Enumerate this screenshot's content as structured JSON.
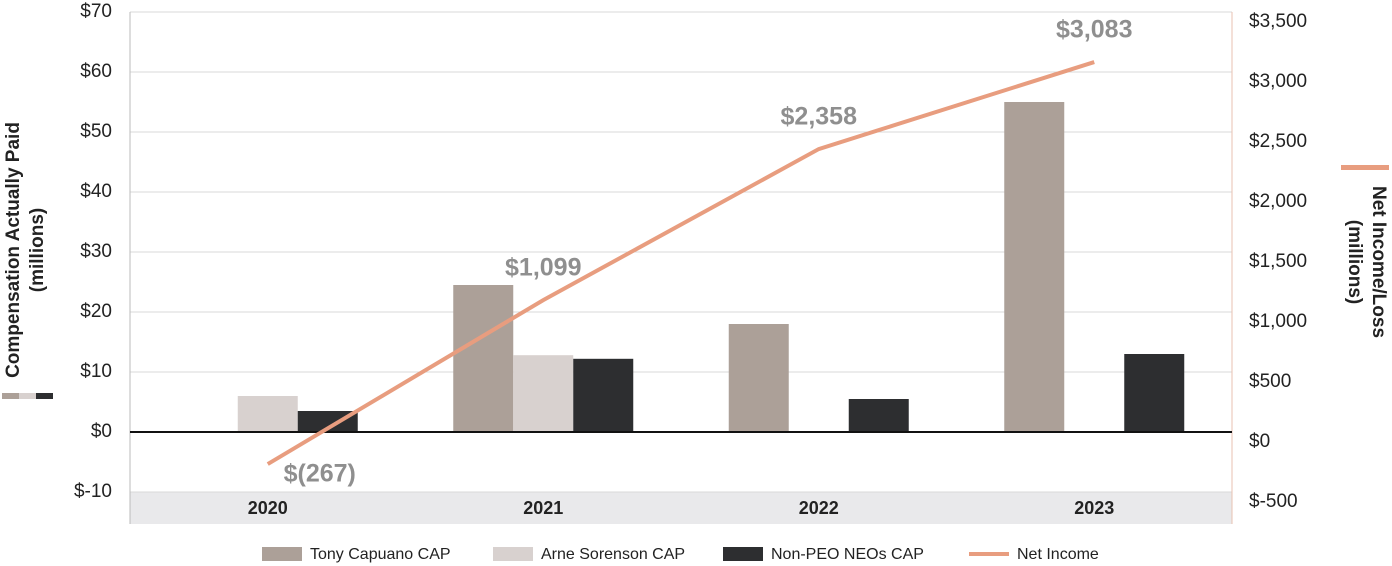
{
  "chart_data": {
    "type": "bar",
    "categories": [
      "2020",
      "2021",
      "2022",
      "2023"
    ],
    "y_label": "Compensation Actually Paid (millions)",
    "y2_label": "Net Income/Loss (millions)",
    "ylim": [
      -10,
      70
    ],
    "yticks": [
      {
        "value": -10,
        "label": "$-10"
      },
      {
        "value": 0,
        "label": "$0"
      },
      {
        "value": 10,
        "label": "$10"
      },
      {
        "value": 20,
        "label": "$20"
      },
      {
        "value": 30,
        "label": "$30"
      },
      {
        "value": 40,
        "label": "$40"
      },
      {
        "value": 50,
        "label": "$50"
      },
      {
        "value": 60,
        "label": "$60"
      },
      {
        "value": 70,
        "label": "$70"
      }
    ],
    "y2lim": [
      -500,
      3500
    ],
    "y2ticks": [
      {
        "value": -500,
        "label": "$-500"
      },
      {
        "value": 0,
        "label": "$0"
      },
      {
        "value": 500,
        "label": "$500"
      },
      {
        "value": 1000,
        "label": "$1,000"
      },
      {
        "value": 1500,
        "label": "$1,500"
      },
      {
        "value": 2000,
        "label": "$2,000"
      },
      {
        "value": 2500,
        "label": "$2,500"
      },
      {
        "value": 3000,
        "label": "$3,000"
      },
      {
        "value": 3500,
        "label": "$3,500"
      }
    ],
    "grid": true,
    "series": [
      {
        "name": "Tony Capuano CAP",
        "type": "bar",
        "color": "#aca098",
        "values": [
          null,
          24.5,
          18,
          55
        ]
      },
      {
        "name": "Arne Sorenson CAP",
        "type": "bar",
        "color": "#d8d1cf",
        "values": [
          6,
          12.8,
          null,
          null
        ]
      },
      {
        "name": "Non-PEO NEOs CAP",
        "type": "bar",
        "color": "#2d2e30",
        "values": [
          3.5,
          12.2,
          5.5,
          13
        ]
      },
      {
        "name": "Net Income",
        "type": "line",
        "axis": "y2",
        "color": "#e89d7f",
        "values": [
          -267,
          1099,
          2358,
          3083
        ],
        "value_labels": [
          "$(267)",
          "$1,099",
          "$2,358",
          "$3,083"
        ]
      }
    ]
  }
}
